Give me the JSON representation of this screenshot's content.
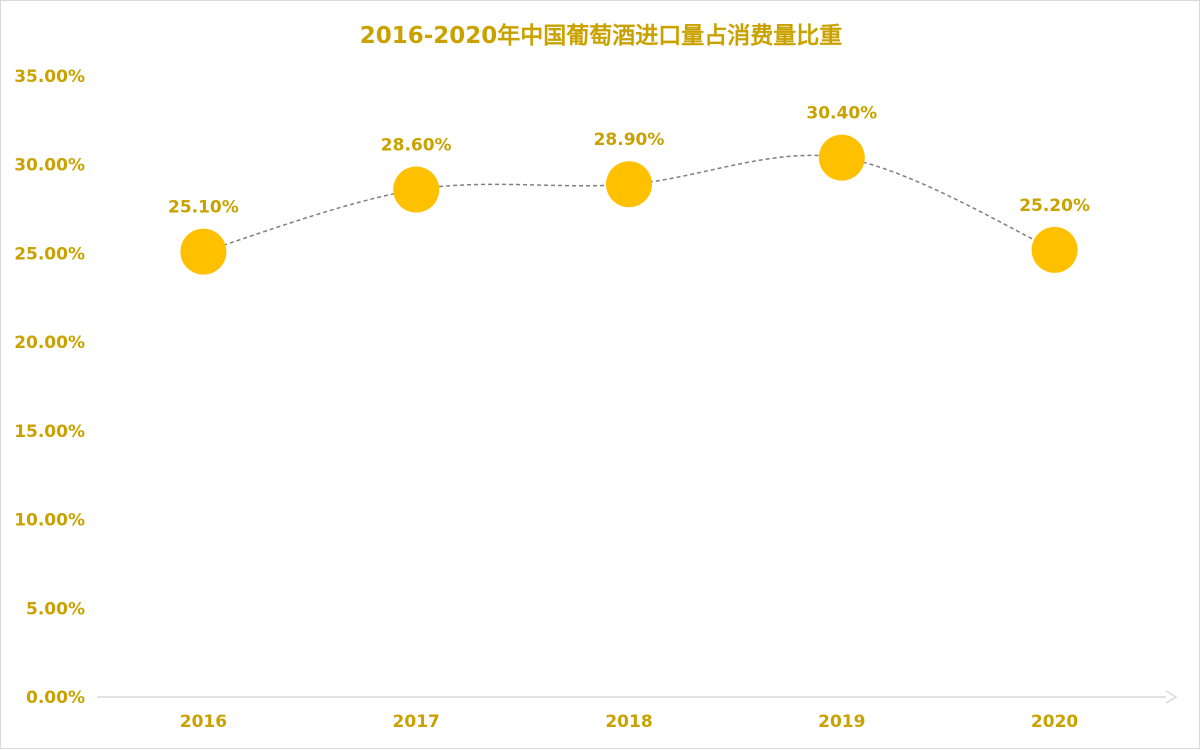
{
  "chart_data": {
    "type": "line",
    "title": "2016-2020年中国葡萄酒进口量占消费量比重",
    "categories": [
      "2016",
      "2017",
      "2018",
      "2019",
      "2020"
    ],
    "series": [
      {
        "values": [
          25.1,
          28.6,
          28.9,
          30.4,
          25.2
        ]
      }
    ],
    "data_labels": [
      "25.10%",
      "28.60%",
      "28.90%",
      "30.40%",
      "25.20%"
    ],
    "y_ticks": [
      0,
      5,
      10,
      15,
      20,
      25,
      30,
      35
    ],
    "y_tick_labels": [
      "0.00%",
      "5.00%",
      "10.00%",
      "15.00%",
      "20.00%",
      "25.00%",
      "30.00%",
      "35.00%"
    ],
    "ylim": [
      0,
      35
    ],
    "xlabel": "",
    "ylabel": "",
    "grid": false,
    "line_style": "dashed smooth",
    "colors": {
      "text": "#C9A200",
      "marker": "#FFC000",
      "line": "#7f7f7f",
      "axis": "#d9d9d9"
    }
  }
}
